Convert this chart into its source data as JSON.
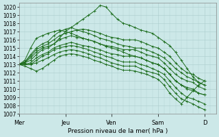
{
  "title": "",
  "xlabel": "Pression niveau de la mer( hPa )",
  "ylabel": "",
  "bg_color": "#cce8e8",
  "grid_color": "#aacccc",
  "line_color": "#1a6b1a",
  "ylim": [
    1007,
    1020.5
  ],
  "yticks": [
    1007,
    1008,
    1009,
    1010,
    1011,
    1012,
    1013,
    1014,
    1015,
    1016,
    1017,
    1018,
    1019,
    1020
  ],
  "day_labels": [
    "Mer",
    "Jeu",
    "Ven",
    "Sam",
    "D"
  ],
  "day_positions": [
    0,
    8,
    16,
    24,
    32
  ],
  "xlim": [
    0,
    34
  ],
  "n_points": 33,
  "series": [
    [
      1013.0,
      1013.2,
      1013.8,
      1014.5,
      1015.0,
      1015.2,
      1015.5,
      1016.2,
      1017.0,
      1017.5,
      1018.0,
      1018.5,
      1019.0,
      1019.5,
      1020.2,
      1020.0,
      1019.2,
      1018.5,
      1018.0,
      1017.8,
      1017.5,
      1017.2,
      1017.0,
      1016.8,
      1016.3,
      1015.8,
      1015.3,
      1014.5,
      1013.5,
      1012.5,
      1011.5,
      1010.8,
      1010.5
    ],
    [
      1013.0,
      1013.3,
      1014.0,
      1014.8,
      1015.2,
      1015.5,
      1016.0,
      1016.5,
      1016.8,
      1017.0,
      1017.2,
      1017.3,
      1017.2,
      1017.0,
      1016.8,
      1016.5,
      1016.3,
      1016.2,
      1016.0,
      1016.0,
      1016.0,
      1015.8,
      1015.5,
      1015.2,
      1015.0,
      1014.5,
      1014.0,
      1013.2,
      1012.5,
      1012.0,
      1011.8,
      1011.3,
      1011.0
    ],
    [
      1013.0,
      1013.3,
      1014.2,
      1015.0,
      1015.5,
      1015.8,
      1016.5,
      1017.0,
      1017.3,
      1017.5,
      1017.2,
      1017.0,
      1016.8,
      1016.5,
      1016.2,
      1016.0,
      1015.8,
      1015.5,
      1015.3,
      1015.2,
      1015.0,
      1015.0,
      1014.8,
      1014.5,
      1014.2,
      1013.8,
      1013.2,
      1012.5,
      1012.0,
      1011.5,
      1011.2,
      1010.8,
      1010.5
    ],
    [
      1013.0,
      1013.2,
      1013.5,
      1014.2,
      1014.8,
      1015.0,
      1015.5,
      1016.0,
      1016.3,
      1016.5,
      1016.3,
      1016.2,
      1016.0,
      1015.8,
      1015.5,
      1015.3,
      1015.2,
      1015.0,
      1014.8,
      1014.8,
      1014.8,
      1014.5,
      1014.2,
      1014.0,
      1013.8,
      1013.2,
      1012.5,
      1011.8,
      1011.3,
      1011.0,
      1010.8,
      1010.3,
      1010.0
    ],
    [
      1013.0,
      1013.0,
      1013.2,
      1013.8,
      1014.2,
      1014.5,
      1015.0,
      1015.3,
      1015.5,
      1015.7,
      1015.5,
      1015.3,
      1015.2,
      1015.0,
      1014.8,
      1014.5,
      1014.3,
      1014.2,
      1014.0,
      1014.0,
      1014.0,
      1013.8,
      1013.5,
      1013.2,
      1013.0,
      1012.5,
      1011.8,
      1011.0,
      1010.5,
      1010.2,
      1010.0,
      1009.5,
      1009.3
    ],
    [
      1013.0,
      1013.0,
      1013.0,
      1013.5,
      1014.0,
      1014.3,
      1014.8,
      1015.0,
      1015.2,
      1015.3,
      1015.2,
      1015.0,
      1014.8,
      1014.5,
      1014.3,
      1014.0,
      1013.8,
      1013.5,
      1013.3,
      1013.3,
      1013.3,
      1013.0,
      1012.8,
      1012.5,
      1012.2,
      1011.8,
      1011.0,
      1010.2,
      1009.5,
      1009.0,
      1008.8,
      1008.5,
      1008.2
    ],
    [
      1013.0,
      1013.0,
      1013.0,
      1013.2,
      1013.5,
      1013.8,
      1014.2,
      1014.5,
      1014.7,
      1014.8,
      1014.7,
      1014.5,
      1014.3,
      1014.0,
      1013.8,
      1013.5,
      1013.2,
      1013.0,
      1012.8,
      1012.8,
      1012.8,
      1012.5,
      1012.2,
      1012.0,
      1011.8,
      1011.2,
      1010.3,
      1009.5,
      1008.8,
      1008.5,
      1008.2,
      1007.8,
      1007.5
    ],
    [
      1013.0,
      1012.8,
      1012.5,
      1012.2,
      1012.5,
      1013.0,
      1013.5,
      1014.0,
      1014.2,
      1014.3,
      1014.2,
      1014.0,
      1013.8,
      1013.5,
      1013.3,
      1013.0,
      1012.8,
      1012.5,
      1012.3,
      1012.3,
      1012.2,
      1012.0,
      1011.8,
      1011.5,
      1011.2,
      1010.5,
      1009.5,
      1008.8,
      1008.2,
      1009.0,
      1009.8,
      1010.5,
      1011.0
    ],
    [
      1013.0,
      1013.5,
      1015.0,
      1016.2,
      1016.5,
      1016.8,
      1017.0,
      1017.2,
      1017.0,
      1016.8,
      1016.5,
      1016.2,
      1016.0,
      1015.8,
      1015.5,
      1015.2,
      1015.0,
      1014.8,
      1014.5,
      1014.2,
      1014.0,
      1013.8,
      1013.5,
      1013.2,
      1013.0,
      1012.5,
      1011.8,
      1011.0,
      1010.5,
      1010.0,
      1009.8,
      1009.5,
      1009.3
    ]
  ]
}
